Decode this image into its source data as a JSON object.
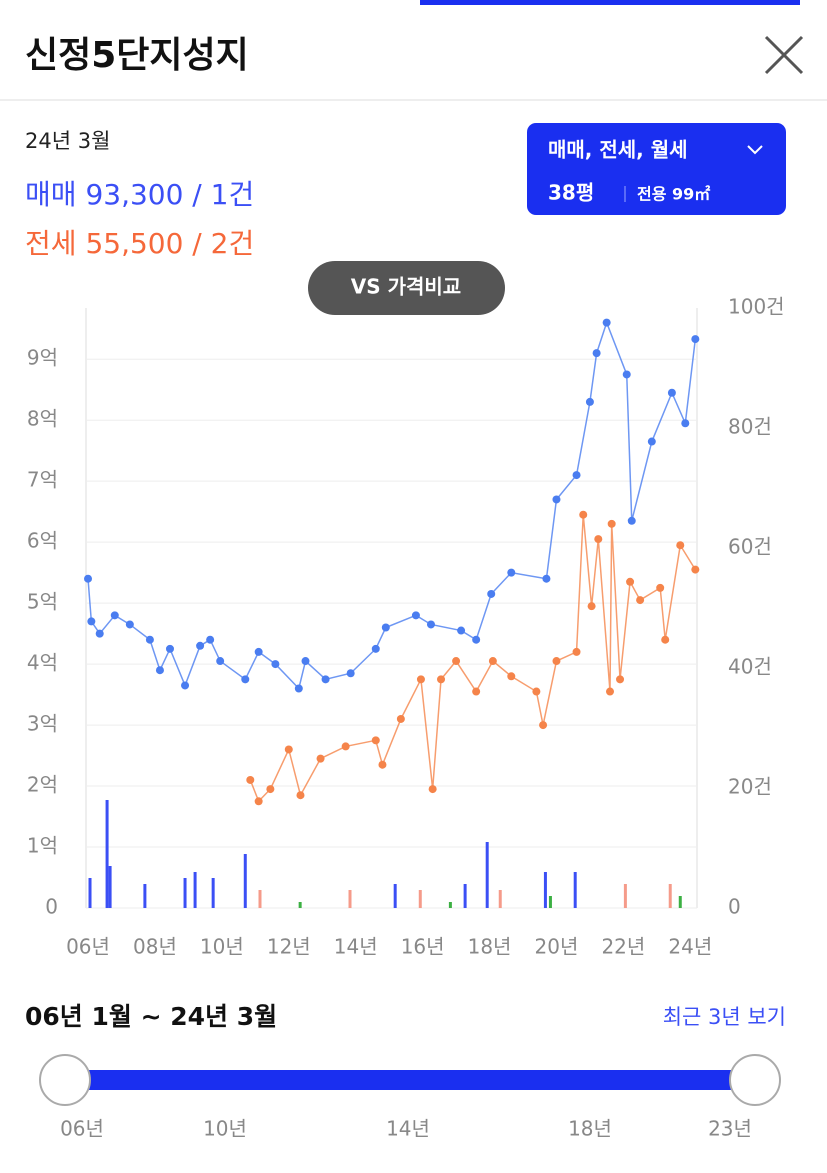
{
  "header": {
    "title": "신정5단지성지"
  },
  "summary": {
    "date": "24년 3월",
    "sale_label": "매매",
    "sale_value": "93,300 / 1건",
    "jeonse_label": "전세",
    "jeonse_value": "55,500 / 2건"
  },
  "filter_button": {
    "deal_types": "매매, 전세, 월세",
    "size": "38평",
    "area": "전용 99㎡"
  },
  "compare_button": "VS 가격비교",
  "chart_data": {
    "type": "line",
    "xlim": [
      2005.94,
      2024.2
    ],
    "xticks": [
      {
        "value": 2006,
        "label": "06년"
      },
      {
        "value": 2008,
        "label": "08년"
      },
      {
        "value": 2010,
        "label": "10년"
      },
      {
        "value": 2012,
        "label": "12년"
      },
      {
        "value": 2014,
        "label": "14년"
      },
      {
        "value": 2016,
        "label": "16년"
      },
      {
        "value": 2018,
        "label": "18년"
      },
      {
        "value": 2020,
        "label": "20년"
      },
      {
        "value": 2022,
        "label": "22년"
      },
      {
        "value": 2024,
        "label": "24년"
      }
    ],
    "ylim": [
      0,
      9.84
    ],
    "yticks": [
      0,
      {
        "value": 1,
        "label": "1억"
      },
      {
        "value": 2,
        "label": "2억"
      },
      {
        "value": 3,
        "label": "3억"
      },
      {
        "value": 4,
        "label": "4억"
      },
      {
        "value": 5,
        "label": "5억"
      },
      {
        "value": 6,
        "label": "6억"
      },
      {
        "value": 7,
        "label": "7억"
      },
      {
        "value": 8,
        "label": "8억"
      },
      {
        "value": 9,
        "label": "9억"
      }
    ],
    "y2lim": [
      0,
      100
    ],
    "y2ticks": [
      0,
      {
        "value": 20,
        "label": "20건"
      },
      {
        "value": 40,
        "label": "40건"
      },
      {
        "value": 60,
        "label": "60건"
      },
      {
        "value": 80,
        "label": "80건"
      },
      {
        "value": 100,
        "label": "100건"
      }
    ],
    "grid": true,
    "series": [
      {
        "color": "#4a7df0",
        "x": [
          2006.0,
          2006.1,
          2006.35,
          2006.8,
          2007.25,
          2007.85,
          2008.15,
          2008.45,
          2008.9,
          2009.35,
          2009.65,
          2009.95,
          2010.7,
          2011.1,
          2011.6,
          2012.3,
          2012.5,
          2013.1,
          2013.85,
          2014.6,
          2014.9,
          2015.8,
          2016.25,
          2017.15,
          2017.6,
          2018.05,
          2018.65,
          2019.7,
          2020.0,
          2020.6,
          2021.0,
          2021.2,
          2021.5,
          2022.1,
          2022.25,
          2022.85,
          2023.45,
          2023.85,
          2024.15
        ],
        "values": [
          5.4,
          4.7,
          4.5,
          4.8,
          4.65,
          4.4,
          3.9,
          4.25,
          3.65,
          4.3,
          4.4,
          4.05,
          3.75,
          4.2,
          4.0,
          3.6,
          4.05,
          3.75,
          3.85,
          4.25,
          4.6,
          4.8,
          4.65,
          4.55,
          4.4,
          5.15,
          5.5,
          5.4,
          6.7,
          7.1,
          8.3,
          9.1,
          9.6,
          8.75,
          6.35,
          7.65,
          8.45,
          7.95,
          9.33
        ]
      },
      {
        "color": "#f5844a",
        "x": [
          2010.85,
          2011.1,
          2011.45,
          2012.0,
          2012.35,
          2012.95,
          2013.7,
          2014.6,
          2014.8,
          2015.35,
          2015.95,
          2016.3,
          2016.55,
          2017.0,
          2017.6,
          2018.1,
          2018.65,
          2019.4,
          2019.6,
          2020.0,
          2020.6,
          2020.8,
          2021.05,
          2021.25,
          2021.6,
          2021.65,
          2021.9,
          2022.2,
          2022.5,
          2023.1,
          2023.25,
          2023.7,
          2024.15
        ],
        "values": [
          2.1,
          1.75,
          1.95,
          2.6,
          1.85,
          2.45,
          2.65,
          2.75,
          2.35,
          3.1,
          3.75,
          1.95,
          3.75,
          4.05,
          3.55,
          4.05,
          3.8,
          3.55,
          3.0,
          4.05,
          4.2,
          6.45,
          4.95,
          6.05,
          3.55,
          6.3,
          3.75,
          5.35,
          5.05,
          5.25,
          4.4,
          5.95,
          5.55
        ]
      },
      {
        "type": "bar",
        "axis": "y2",
        "color": "#3b4ff5",
        "x": [
          2006.06,
          2006.57,
          2006.66,
          2007.7,
          2008.9,
          2009.2,
          2009.74,
          2010.7,
          2015.18,
          2017.27,
          2017.93,
          2019.67,
          2020.56
        ],
        "values": [
          5,
          18,
          7,
          4,
          5,
          6,
          5,
          9,
          4,
          4,
          11,
          6,
          6
        ]
      },
      {
        "type": "bar",
        "axis": "y2",
        "color": "#f59b8a",
        "x": [
          2011.14,
          2013.83,
          2015.93,
          2018.32,
          2022.06,
          2023.4
        ],
        "values": [
          3,
          3,
          3,
          3,
          4,
          4
        ]
      },
      {
        "type": "bar",
        "axis": "y2",
        "color": "#3cb043",
        "x": [
          2012.34,
          2016.83,
          2019.82,
          2023.7
        ],
        "values": [
          1,
          1,
          2,
          2
        ]
      }
    ]
  },
  "period": {
    "range": "06년 1월 ~ 24년 3월",
    "recent_link": "최근 3년 보기"
  },
  "slider": {
    "labels": [
      "06년",
      "10년",
      "14년",
      "18년",
      "23년"
    ]
  }
}
